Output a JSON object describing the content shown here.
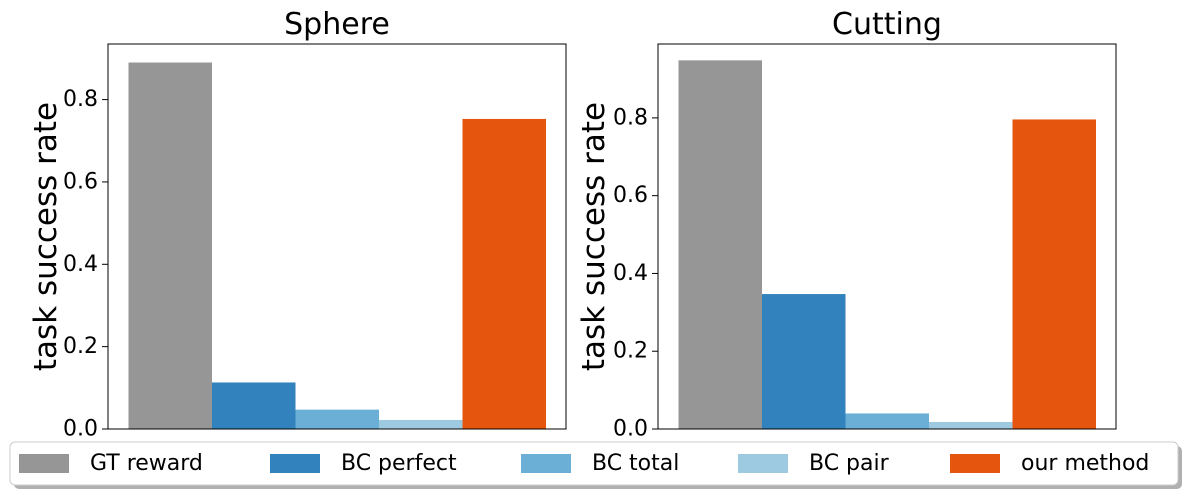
{
  "chart_data": [
    {
      "type": "bar",
      "title": "Sphere",
      "xlabel": "",
      "ylabel": "task success rate",
      "ylim": [
        0,
        0.935
      ],
      "yticks": [
        "0.0",
        "0.2",
        "0.4",
        "0.6",
        "0.8"
      ],
      "series": [
        {
          "name": "GT reward",
          "values": [
            0.89
          ]
        },
        {
          "name": "BC perfect",
          "values": [
            0.113
          ]
        },
        {
          "name": "BC total",
          "values": [
            0.047
          ]
        },
        {
          "name": "BC pair",
          "values": [
            0.022
          ]
        },
        {
          "name": "our method",
          "values": [
            0.753
          ]
        }
      ]
    },
    {
      "type": "bar",
      "title": "Cutting",
      "xlabel": "",
      "ylabel": "task success rate",
      "ylim": [
        0,
        0.99
      ],
      "yticks": [
        "0.0",
        "0.2",
        "0.4",
        "0.6",
        "0.8"
      ],
      "series": [
        {
          "name": "GT reward",
          "values": [
            0.948
          ]
        },
        {
          "name": "BC perfect",
          "values": [
            0.347
          ]
        },
        {
          "name": "BC total",
          "values": [
            0.04
          ]
        },
        {
          "name": "BC pair",
          "values": [
            0.018
          ]
        },
        {
          "name": "our method",
          "values": [
            0.796
          ]
        }
      ]
    }
  ],
  "legend": {
    "placement": "bottom",
    "entries": [
      {
        "label": "GT reward",
        "color": "#969696"
      },
      {
        "label": "BC perfect",
        "color": "#3182bd"
      },
      {
        "label": "BC total",
        "color": "#6baed6"
      },
      {
        "label": "BC pair",
        "color": "#9ecae1"
      },
      {
        "label": "our method",
        "color": "#e6550d"
      }
    ]
  }
}
